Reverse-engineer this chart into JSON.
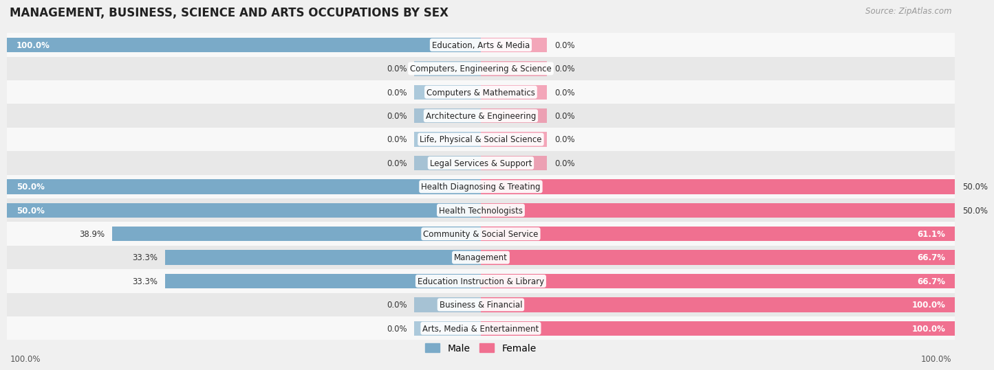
{
  "title": "MANAGEMENT, BUSINESS, SCIENCE AND ARTS OCCUPATIONS BY SEX",
  "source": "Source: ZipAtlas.com",
  "categories": [
    "Education, Arts & Media",
    "Computers, Engineering & Science",
    "Computers & Mathematics",
    "Architecture & Engineering",
    "Life, Physical & Social Science",
    "Legal Services & Support",
    "Health Diagnosing & Treating",
    "Health Technologists",
    "Community & Social Service",
    "Management",
    "Education Instruction & Library",
    "Business & Financial",
    "Arts, Media & Entertainment"
  ],
  "male": [
    100.0,
    0.0,
    0.0,
    0.0,
    0.0,
    0.0,
    50.0,
    50.0,
    38.9,
    33.3,
    33.3,
    0.0,
    0.0
  ],
  "female": [
    0.0,
    0.0,
    0.0,
    0.0,
    0.0,
    0.0,
    50.0,
    50.0,
    61.1,
    66.7,
    66.7,
    100.0,
    100.0
  ],
  "male_color": "#7aaac8",
  "female_color": "#f07090",
  "male_label": "Male",
  "female_label": "Female",
  "bg_color": "#f0f0f0",
  "row_bg_colors": [
    "#f8f8f8",
    "#e8e8e8"
  ],
  "label_fontsize": 8.5,
  "title_fontsize": 12,
  "source_fontsize": 8.5,
  "stub_size": 7.0,
  "bottom_left_label": "100.0%",
  "bottom_right_label": "100.0%"
}
